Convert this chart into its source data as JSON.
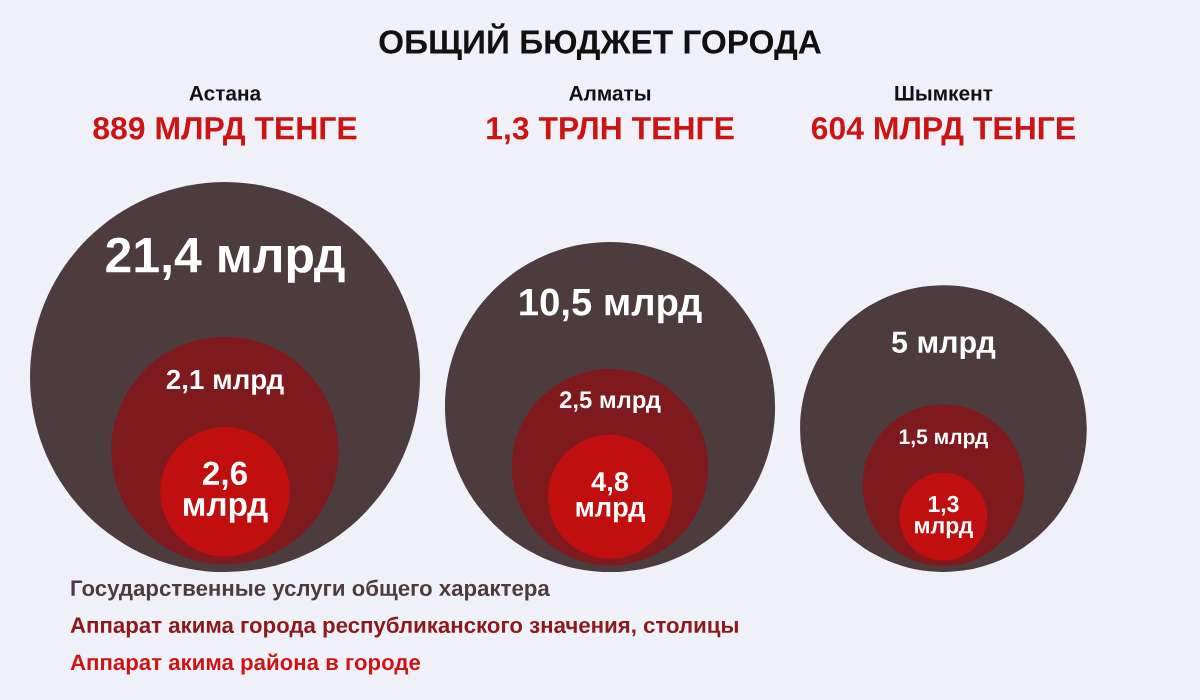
{
  "chart_data": {
    "type": "other",
    "title": "ОБЩИЙ БЮДЖЕТ ГОРОДА",
    "categories": [
      "Астана",
      "Алматы",
      "Шымкент"
    ],
    "totals": [
      "889 МЛРД ТЕНГЕ",
      "1,3 ТРЛН ТЕНГЕ",
      "604 МЛРД ТЕНГЕ"
    ],
    "series": [
      {
        "name": "Государственные услуги общего характера",
        "color": "#4d3c3e",
        "values": [
          21.4,
          10.5,
          5
        ],
        "value_labels": [
          "21,4 млрд",
          "10,5 млрд",
          "5 млрд"
        ]
      },
      {
        "name": "Аппарат акима города республиканского значения, столицы",
        "color": "#7e1a1e",
        "values": [
          2.1,
          2.5,
          1.5
        ],
        "value_labels": [
          "2,1 млрд",
          "2,5 млрд",
          "1,5 млрд"
        ]
      },
      {
        "name": "Аппарат акима района в городе",
        "color": "#c10f10",
        "values": [
          2.6,
          4.8,
          1.3
        ],
        "value_labels": [
          "2,6\nмлрд",
          "4,8\nмлрд",
          "1,3\nмлрд"
        ]
      }
    ],
    "legend": "bottom left"
  }
}
